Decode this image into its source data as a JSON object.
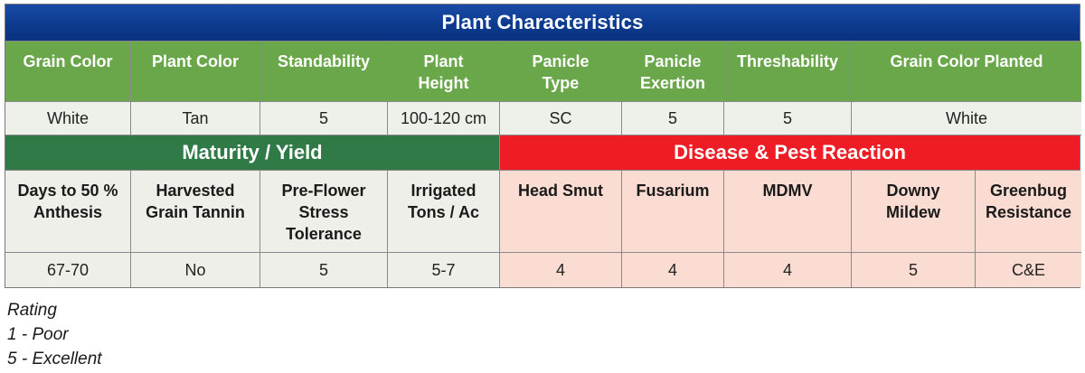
{
  "title": "Plant Characteristics",
  "plant": {
    "headers": [
      "Grain Color",
      "Plant Color",
      "Standability",
      "Plant\nHeight",
      "Panicle\nType",
      "Panicle\nExertion",
      "Threshability",
      "Grain Color Planted"
    ],
    "values": [
      "White",
      "Tan",
      "5",
      "100-120 cm",
      "SC",
      "5",
      "5",
      "White"
    ]
  },
  "sections": {
    "maturity": "Maturity / Yield",
    "disease": "Disease & Pest Reaction"
  },
  "details": {
    "headers": [
      "Days to 50 %\nAnthesis",
      "Harvested\nGrain Tannin",
      "Pre-Flower\nStress\nTolerance",
      "Irrigated\nTons / Ac",
      "Head Smut",
      "Fusarium",
      "MDMV",
      "Downy\nMildew",
      "Greenbug\nResistance"
    ],
    "values": [
      "67-70",
      "No",
      "5",
      "5-7",
      "4",
      "4",
      "4",
      "5",
      "C&E"
    ]
  },
  "rating": {
    "title": "Rating",
    "poor": "1 - Poor",
    "excellent": "5 - Excellent"
  },
  "colors": {
    "title_blue": "#0d3b8f",
    "header_green": "#6aa64a",
    "section_green": "#2f7a47",
    "section_red": "#ee1c24",
    "disease_pink": "#fbdcd2"
  }
}
